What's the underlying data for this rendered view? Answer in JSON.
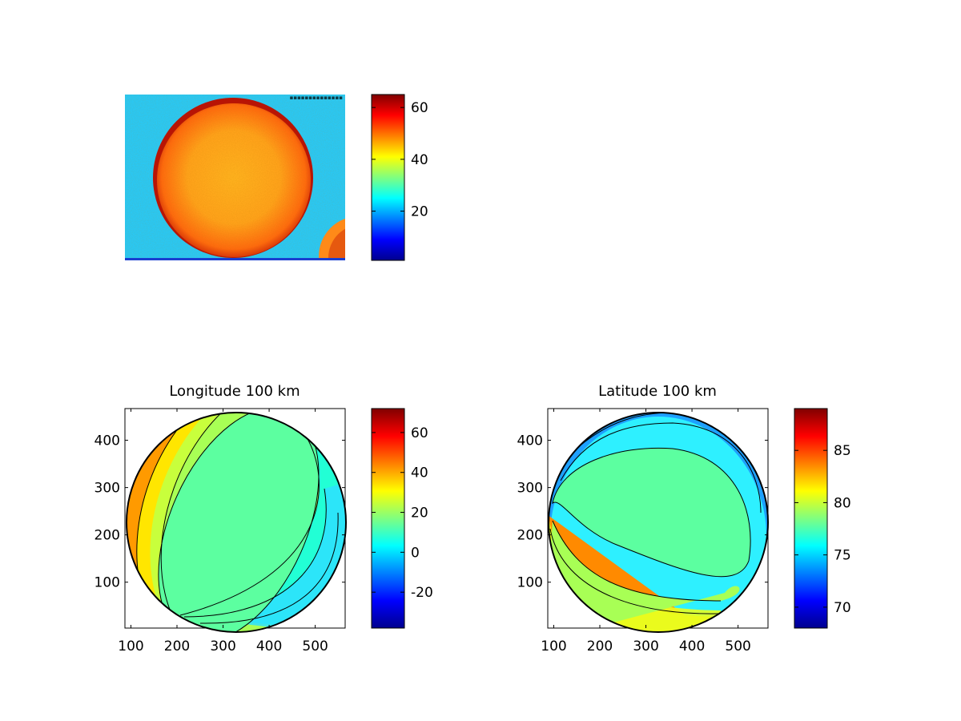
{
  "colors": {
    "colormap": "jet",
    "contour_line": "#000000",
    "axes_frame": "#000000",
    "background": "#ffffff"
  },
  "chart_data": [
    {
      "type": "heatmap",
      "title": "",
      "xlabel": "",
      "ylabel": "",
      "axis_visible": false,
      "content": "noisy intensity image of a bright circular disk on a cyan background, plus a partial disk at the lower-right corner",
      "colorbar": {
        "range": [
          1,
          65
        ],
        "ticks": [
          20,
          40,
          60
        ]
      }
    },
    {
      "type": "heatmap",
      "title": "Longitude 100 km",
      "xlabel": "",
      "ylabel": "",
      "xlim": [
        87,
        565
      ],
      "ylim": [
        3,
        467
      ],
      "xticks": [
        100,
        200,
        300,
        400,
        500
      ],
      "yticks": [
        100,
        200,
        300,
        400
      ],
      "contour_levels": [
        10,
        20,
        30,
        40
      ],
      "colorbar": {
        "range": [
          -38,
          72
        ],
        "ticks": [
          -20,
          0,
          20,
          40,
          60
        ]
      }
    },
    {
      "type": "heatmap",
      "title": "Latitude 100 km",
      "xlabel": "",
      "ylabel": "",
      "xlim": [
        87,
        565
      ],
      "ylim": [
        3,
        467
      ],
      "xticks": [
        100,
        200,
        300,
        400,
        500
      ],
      "yticks": [
        100,
        200,
        300,
        400
      ],
      "contour_levels": [
        75,
        77,
        79
      ],
      "colorbar": {
        "range": [
          68,
          89
        ],
        "ticks": [
          70,
          75,
          80,
          85
        ]
      }
    }
  ]
}
